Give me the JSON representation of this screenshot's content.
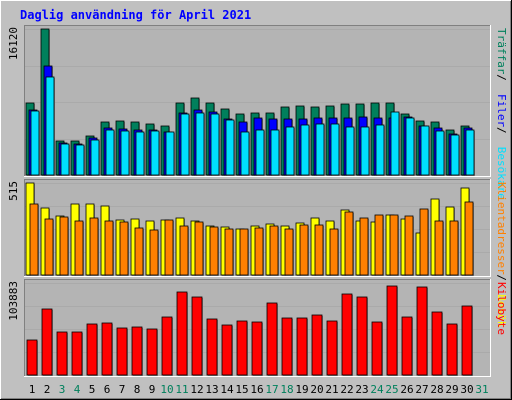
{
  "title": "Daglig användning för April 2021",
  "colors": {
    "background": "#c0c0c0",
    "panel": "#b4b4b4",
    "title": "#0000ff",
    "hits": "#00805c",
    "files": "#0000ff",
    "sites": "#00e0ff",
    "visits": "#ffff00",
    "kbytes": "#ff0000",
    "hostnames": "#ff8000",
    "weekend": "#00805c",
    "weekday": "#000000"
  },
  "days": [
    "1",
    "2",
    "3",
    "4",
    "5",
    "6",
    "7",
    "8",
    "9",
    "10",
    "11",
    "12",
    "13",
    "14",
    "15",
    "16",
    "17",
    "18",
    "19",
    "20",
    "21",
    "22",
    "23",
    "24",
    "25",
    "26",
    "27",
    "28",
    "29",
    "30",
    "31"
  ],
  "weekend_days": [
    "3",
    "4",
    "10",
    "11",
    "17",
    "18",
    "24",
    "25",
    "31"
  ],
  "chart_data": [
    {
      "type": "bar",
      "name": "top",
      "ymax_label": "16120",
      "ymax": 16120,
      "right_labels": [
        {
          "text": "Träffar",
          "color": "#00805c"
        },
        {
          "text": "Filer",
          "color": "#0000ff"
        },
        {
          "text": "Besökare",
          "color": "#00e0ff"
        }
      ],
      "series": [
        {
          "name": "Träffar",
          "values": [
            8000,
            16120,
            3800,
            3700,
            4300,
            5800,
            6000,
            5800,
            5600,
            5400,
            8000,
            8500,
            7900,
            7300,
            6700,
            6800,
            6800,
            7500,
            7600,
            7500,
            7600,
            7800,
            7800,
            7900,
            8000,
            6700,
            6000,
            5800,
            5000,
            5400,
            0
          ]
        },
        {
          "name": "Filer",
          "values": [
            7200,
            12000,
            3500,
            3400,
            4100,
            5200,
            5100,
            5000,
            5000,
            4800,
            6900,
            7200,
            7000,
            6200,
            5900,
            6300,
            6200,
            6200,
            6200,
            6300,
            6300,
            6300,
            6400,
            6300,
            6300,
            6400,
            5400,
            5200,
            4500,
            5200,
            0
          ]
        },
        {
          "name": "Besökare",
          "values": [
            7100,
            10800,
            3400,
            3300,
            3900,
            5000,
            4900,
            4800,
            4900,
            4700,
            6700,
            6900,
            6700,
            6100,
            4800,
            5000,
            5000,
            5300,
            5500,
            5600,
            5600,
            5300,
            5300,
            5500,
            7000,
            6300,
            5400,
            4900,
            4400,
            5000,
            0
          ]
        }
      ]
    },
    {
      "type": "bar",
      "name": "middle",
      "ymax_label": "515",
      "ymax": 515,
      "right_labels": [
        {
          "text": "Klientadresser",
          "color": "#ff8000"
        },
        {
          "text": "Besök",
          "color": "#ffff00"
        }
      ],
      "series": [
        {
          "name": "Besök",
          "values": [
            515,
            375,
            330,
            400,
            400,
            385,
            310,
            315,
            300,
            310,
            320,
            305,
            275,
            270,
            260,
            275,
            285,
            275,
            290,
            320,
            300,
            365,
            305,
            295,
            335,
            315,
            235,
            425,
            380,
            485,
            0
          ]
        },
        {
          "name": "Klientadresser",
          "values": [
            400,
            315,
            325,
            300,
            320,
            305,
            295,
            265,
            250,
            310,
            275,
            295,
            270,
            260,
            260,
            265,
            275,
            260,
            280,
            280,
            260,
            355,
            320,
            335,
            335,
            330,
            370,
            300,
            300,
            410,
            0
          ]
        }
      ]
    },
    {
      "type": "bar",
      "name": "bottom",
      "ymax_label": "103883",
      "ymax": 103883,
      "right_labels": [
        {
          "text": "Kilobyte",
          "color": "#ff0000"
        }
      ],
      "series": [
        {
          "name": "Kilobyte",
          "values": [
            40000,
            75000,
            48000,
            49000,
            58000,
            59000,
            53000,
            54000,
            52000,
            65000,
            94000,
            88000,
            63000,
            56000,
            61000,
            60000,
            81000,
            64000,
            64000,
            68000,
            61000,
            92000,
            88000,
            60000,
            100000,
            65000,
            99000,
            71000,
            58000,
            78000,
            0
          ]
        }
      ]
    }
  ]
}
